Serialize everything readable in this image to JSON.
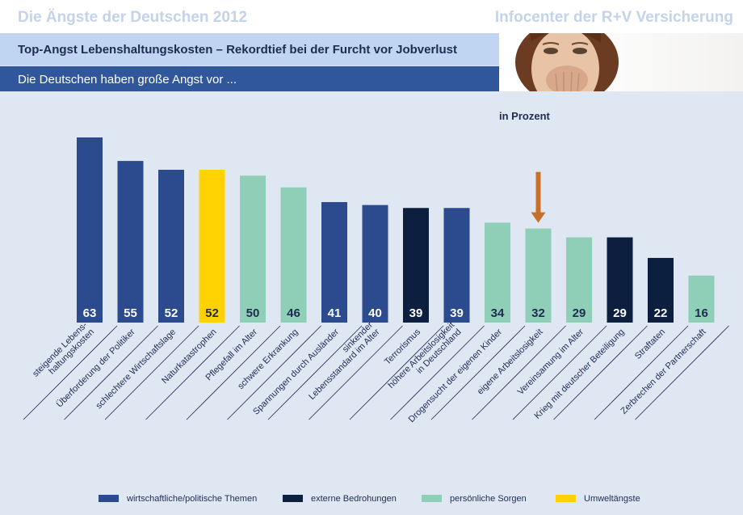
{
  "header": {
    "title_left": "Die Ängste der Deutschen 2012",
    "title_right": "Infocenter der R+V Versicherung",
    "headline": "Top-Angst Lebenshaltungskosten – Rekordtief bei der Furcht vor Jobverlust",
    "subline": "Die Deutschen haben große Angst vor ..."
  },
  "chart_data": {
    "type": "bar",
    "unit_label": "in Prozent",
    "ylim": [
      0,
      70
    ],
    "grid": false,
    "legend_position": "bottom",
    "categories": [
      [
        "steigende Lebens-",
        "haltungskosten"
      ],
      [
        "Überforderung der Politiker"
      ],
      [
        "schlechtere Wirtschaftslage"
      ],
      [
        "Naturkatastrophen"
      ],
      [
        "Pflegefall im Alter"
      ],
      [
        "schwere Erkrankung"
      ],
      [
        "Spannungen durch Ausländer"
      ],
      [
        "sinkender",
        "Lebensstandard im Alter"
      ],
      [
        "Terrorismus"
      ],
      [
        "höhere Arbeitslosigkeit",
        "in Deutschland"
      ],
      [
        "Drogensucht der eigenen Kinder"
      ],
      [
        "eigene Arbeitslosigkeit"
      ],
      [
        "Vereinsamung im Alter"
      ],
      [
        "Krieg mit deutscher Beteiligung"
      ],
      [
        "Straftaten"
      ],
      [
        "Zerbrechen der Partnerschaft"
      ]
    ],
    "values": [
      63,
      55,
      52,
      52,
      50,
      46,
      41,
      40,
      39,
      39,
      34,
      32,
      29,
      29,
      22,
      16
    ],
    "groups": [
      "wp",
      "wp",
      "wp",
      "um",
      "ps",
      "ps",
      "wp",
      "wp",
      "eb",
      "wp",
      "ps",
      "ps",
      "ps",
      "eb",
      "eb",
      "ps"
    ],
    "highlight_index": 11,
    "legend": [
      {
        "key": "wp",
        "label": "wirtschaftliche/politische Themen",
        "color": "#2c4a8e"
      },
      {
        "key": "eb",
        "label": "externe Bedrohungen",
        "color": "#0d1f3f"
      },
      {
        "key": "ps",
        "label": "persönliche Sorgen",
        "color": "#8fcfb8"
      },
      {
        "key": "um",
        "label": "Umweltängste",
        "color": "#ffd200"
      }
    ],
    "colors": {
      "label_light": "#ffffff",
      "label_dark": "#1e2c52",
      "arrow": "#c8702a",
      "rule": "#1e2c52"
    }
  }
}
